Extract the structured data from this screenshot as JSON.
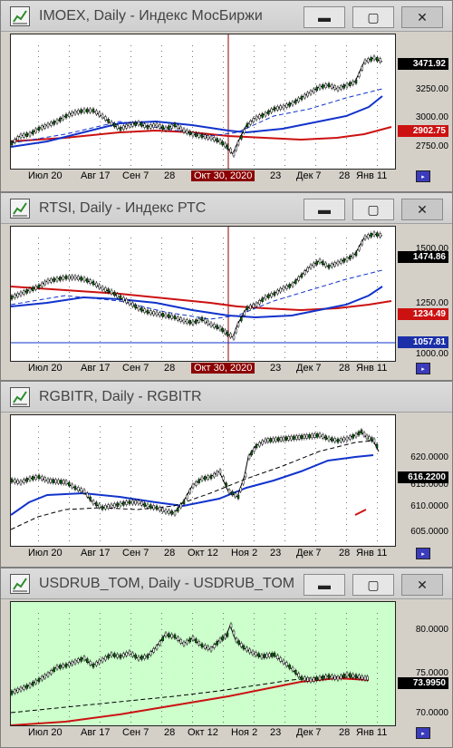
{
  "window_buttons": {
    "minimize": "▬",
    "maximize": "▢",
    "close": "✕"
  },
  "colors": {
    "ma_red": "#cc1111",
    "ma_blue": "#1133cc",
    "candle_up": "#ffffff",
    "candle_down": "#006600",
    "badge_price": "#000000",
    "badge_red": "#cc1111",
    "badge_blue": "#1a2fa8",
    "plot_bg_white": "#ffffff",
    "plot_bg_green": "#ccffcc"
  },
  "charts": [
    {
      "title": "IMOEX, Daily - Индекс МосБиржи",
      "y_labels": [
        "3250.00",
        "3000.00",
        "2750.00"
      ],
      "badges": [
        {
          "text": "3471.92",
          "color": "#000000",
          "kind": "price"
        },
        {
          "text": "2902.75",
          "color": "#cc1111",
          "kind": "ma"
        }
      ],
      "x_labels": [
        "Июл 20",
        "Авг 17",
        "Сен 7",
        "28",
        "Окт 30, 2020",
        "23",
        "Дек 7",
        "28",
        "Янв 11"
      ],
      "highlight_label": "Окт 30, 2020"
    },
    {
      "title": "RTSI, Daily - Индекс РТС",
      "y_labels": [
        "1500.00",
        "1250.00",
        "1000.00"
      ],
      "badges": [
        {
          "text": "1474.86",
          "color": "#000000",
          "kind": "price"
        },
        {
          "text": "1234.49",
          "color": "#cc1111",
          "kind": "ma"
        },
        {
          "text": "1057.81",
          "color": "#1a2fa8",
          "kind": "level"
        }
      ],
      "x_labels": [
        "Июл 20",
        "Авг 17",
        "Сен 7",
        "28",
        "Окт 30, 2020",
        "23",
        "Дек 7",
        "28",
        "Янв 11"
      ],
      "highlight_label": "Окт 30, 2020"
    },
    {
      "title": "RGBITR, Daily - RGBITR",
      "y_labels": [
        "620.0000",
        "615.0000",
        "610.0000",
        "605.0000"
      ],
      "badges": [
        {
          "text": "616.2200",
          "color": "#000000",
          "kind": "price"
        }
      ],
      "x_labels": [
        "Июл 20",
        "Авг 17",
        "Сен 7",
        "28",
        "Окт 12",
        "Ноя 2",
        "23",
        "Дек 7",
        "28",
        "Янв 11"
      ],
      "highlight_label": ""
    },
    {
      "title": "USDRUB_TOM, Daily - USDRUB_TOM",
      "y_labels": [
        "80.0000",
        "75.0000",
        "70.0000"
      ],
      "badges": [
        {
          "text": "73.9950",
          "color": "#000000",
          "kind": "price"
        }
      ],
      "x_labels": [
        "Июл 20",
        "Авг 17",
        "Сен 7",
        "28",
        "Окт 12",
        "Ноя 2",
        "23",
        "Дек 7",
        "28",
        "Янв 11"
      ],
      "highlight_label": ""
    }
  ]
}
